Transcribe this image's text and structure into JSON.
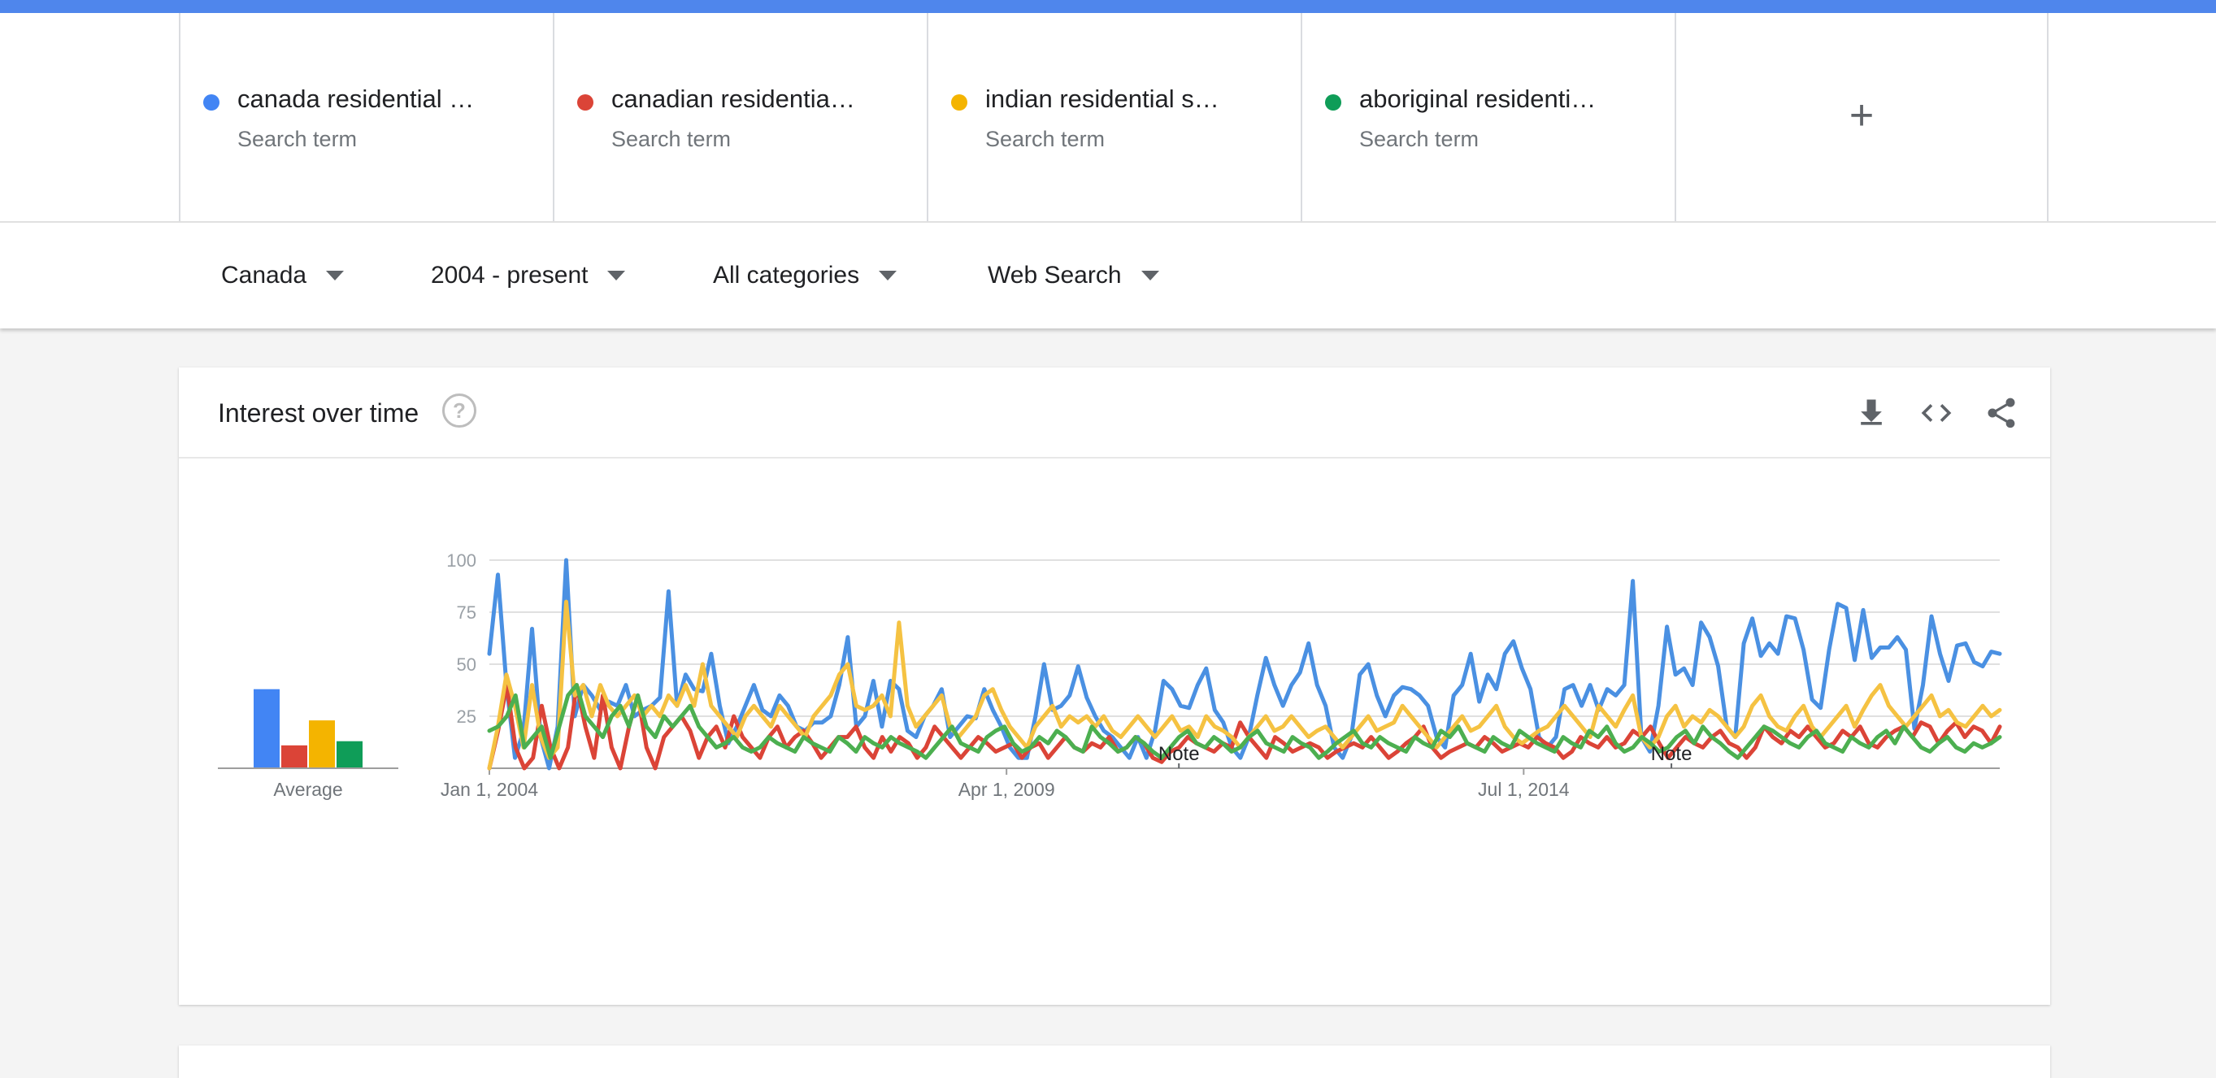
{
  "search_terms": [
    {
      "label": "canada residential …",
      "sub": "Search term",
      "color": "#4285f4"
    },
    {
      "label": "canadian residentia…",
      "sub": "Search term",
      "color": "#db4437"
    },
    {
      "label": "indian residential s…",
      "sub": "Search term",
      "color": "#f4b400"
    },
    {
      "label": "aboriginal residenti…",
      "sub": "Search term",
      "color": "#0f9d58"
    }
  ],
  "add_term_icon": "plus-icon",
  "filters": {
    "region": "Canada",
    "time": "2004 - present",
    "category": "All categories",
    "search_type": "Web Search"
  },
  "card": {
    "title": "Interest over time",
    "help_symbol": "?",
    "icons": [
      "download-icon",
      "embed-code-icon",
      "share-icon"
    ]
  },
  "chart_data": {
    "type": "line",
    "title": "Interest over time",
    "x_range": [
      "2004-01",
      "2019-05"
    ],
    "x_tick_labels": [
      "Jan 1, 2004",
      "Apr 1, 2009",
      "Jul 1, 2014"
    ],
    "ylim": [
      0,
      100
    ],
    "y_ticks": [
      25,
      50,
      75,
      100
    ],
    "grid": true,
    "notes": [
      {
        "date": "2011-01",
        "label": "Note"
      },
      {
        "date": "2016-01",
        "label": "Note"
      }
    ],
    "average_label": "Average",
    "averages": [
      38,
      11,
      23,
      13
    ],
    "series": [
      {
        "name": "canada residential …",
        "color": "#4a90e2",
        "values": [
          55,
          93,
          40,
          5,
          18,
          67,
          15,
          0,
          20,
          100,
          25,
          40,
          35,
          28,
          32,
          30,
          40,
          25,
          28,
          30,
          34,
          85,
          30,
          45,
          38,
          37,
          55,
          30,
          12,
          20,
          30,
          40,
          28,
          25,
          35,
          30,
          20,
          18,
          22,
          22,
          25,
          40,
          63,
          20,
          25,
          42,
          20,
          42,
          38,
          18,
          15,
          25,
          30,
          38,
          15,
          20,
          25,
          24,
          38,
          28,
          20,
          10,
          5,
          5,
          25,
          50,
          28,
          30,
          35,
          49,
          34,
          25,
          18,
          15,
          10,
          5,
          15,
          5,
          18,
          42,
          38,
          30,
          29,
          40,
          48,
          28,
          22,
          10,
          5,
          15,
          35,
          53,
          40,
          30,
          40,
          46,
          60,
          40,
          30,
          10,
          5,
          15,
          45,
          50,
          35,
          25,
          35,
          39,
          38,
          35,
          30,
          15,
          10,
          35,
          40,
          55,
          32,
          45,
          38,
          55,
          61,
          48,
          38,
          15,
          10,
          15,
          38,
          40,
          30,
          40,
          28,
          38,
          35,
          40,
          90,
          15,
          8,
          30,
          68,
          45,
          48,
          40,
          70,
          63,
          49,
          20,
          15,
          60,
          72,
          54,
          60,
          55,
          73,
          72,
          57,
          33,
          29,
          57,
          79,
          77,
          52,
          76,
          53,
          58,
          58,
          63,
          57,
          19,
          40,
          73,
          55,
          42,
          59,
          60,
          51,
          49,
          56,
          55
        ]
      },
      {
        "name": "canadian residentia…",
        "color": "#db4437",
        "values": [
          0,
          18,
          40,
          10,
          0,
          5,
          30,
          10,
          0,
          10,
          40,
          20,
          5,
          35,
          10,
          0,
          20,
          35,
          10,
          0,
          15,
          20,
          25,
          18,
          5,
          15,
          20,
          10,
          25,
          15,
          10,
          5,
          15,
          20,
          10,
          15,
          18,
          12,
          5,
          10,
          15,
          15,
          20,
          10,
          5,
          15,
          8,
          15,
          12,
          5,
          10,
          20,
          15,
          10,
          5,
          10,
          15,
          12,
          8,
          10,
          12,
          5,
          10,
          12,
          5,
          10,
          15,
          10,
          8,
          12,
          10,
          15,
          8,
          10,
          15,
          12,
          5,
          3,
          8,
          10,
          15,
          12,
          10,
          8,
          12,
          10,
          22,
          15,
          10,
          5,
          15,
          12,
          8,
          10,
          12,
          10,
          5,
          8,
          10,
          12,
          10,
          15,
          10,
          5,
          8,
          12,
          15,
          20,
          10,
          5,
          8,
          10,
          12,
          10,
          15,
          12,
          8,
          10,
          12,
          10,
          15,
          12,
          10,
          5,
          8,
          15,
          12,
          10,
          15,
          10,
          12,
          18,
          15,
          20,
          12,
          5,
          10,
          15,
          12,
          10,
          15,
          18,
          12,
          10,
          5,
          10,
          20,
          15,
          12,
          18,
          15,
          20,
          15,
          10,
          12,
          18,
          15,
          20,
          12,
          10,
          15,
          18,
          20,
          15,
          22,
          20,
          12,
          18,
          22,
          15,
          20,
          18,
          12,
          20
        ]
      },
      {
        "name": "indian residential s…",
        "color": "#f5c242",
        "values": [
          0,
          20,
          45,
          30,
          10,
          40,
          15,
          5,
          10,
          80,
          35,
          40,
          25,
          40,
          30,
          25,
          30,
          35,
          25,
          30,
          25,
          35,
          30,
          40,
          30,
          50,
          30,
          25,
          20,
          15,
          25,
          30,
          25,
          20,
          30,
          25,
          20,
          15,
          25,
          30,
          35,
          45,
          50,
          30,
          28,
          30,
          35,
          25,
          70,
          30,
          20,
          25,
          30,
          35,
          20,
          15,
          20,
          25,
          35,
          38,
          28,
          20,
          15,
          10,
          20,
          25,
          30,
          20,
          25,
          22,
          25,
          20,
          25,
          18,
          15,
          20,
          25,
          20,
          15,
          20,
          25,
          18,
          20,
          15,
          25,
          20,
          18,
          15,
          10,
          15,
          20,
          25,
          18,
          20,
          25,
          20,
          15,
          18,
          20,
          15,
          10,
          15,
          20,
          25,
          18,
          20,
          22,
          30,
          25,
          20,
          15,
          10,
          15,
          20,
          25,
          18,
          20,
          25,
          30,
          20,
          15,
          12,
          15,
          18,
          20,
          25,
          30,
          25,
          20,
          15,
          30,
          25,
          20,
          28,
          35,
          15,
          10,
          15,
          25,
          30,
          20,
          25,
          22,
          28,
          25,
          20,
          15,
          20,
          30,
          35,
          25,
          20,
          18,
          25,
          30,
          20,
          15,
          20,
          25,
          30,
          20,
          28,
          35,
          40,
          30,
          25,
          20,
          25,
          30,
          35,
          25,
          28,
          22,
          20,
          25,
          30,
          25,
          28
        ]
      },
      {
        "name": "aboriginal residenti…",
        "color": "#4caf50",
        "values": [
          18,
          20,
          25,
          35,
          10,
          15,
          20,
          5,
          20,
          35,
          40,
          25,
          20,
          15,
          25,
          30,
          20,
          35,
          20,
          15,
          25,
          20,
          25,
          30,
          20,
          15,
          10,
          12,
          15,
          10,
          8,
          10,
          15,
          12,
          10,
          8,
          15,
          12,
          10,
          8,
          15,
          12,
          8,
          15,
          12,
          10,
          15,
          12,
          10,
          8,
          5,
          10,
          15,
          20,
          12,
          10,
          8,
          15,
          18,
          20,
          12,
          8,
          10,
          15,
          12,
          18,
          15,
          10,
          8,
          20,
          15,
          12,
          8,
          10,
          15,
          12,
          8,
          5,
          10,
          15,
          18,
          12,
          10,
          15,
          12,
          8,
          10,
          15,
          18,
          12,
          10,
          8,
          15,
          12,
          10,
          5,
          8,
          12,
          15,
          18,
          12,
          10,
          15,
          12,
          10,
          8,
          15,
          12,
          10,
          18,
          15,
          20,
          12,
          10,
          8,
          15,
          12,
          10,
          18,
          15,
          12,
          10,
          8,
          15,
          12,
          10,
          18,
          15,
          20,
          12,
          8,
          10,
          15,
          12,
          8,
          10,
          15,
          18,
          12,
          20,
          15,
          12,
          8,
          5,
          10,
          15,
          20,
          18,
          15,
          12,
          10,
          15,
          18,
          12,
          10,
          8,
          15,
          12,
          10,
          15,
          18,
          12,
          20,
          15,
          10,
          8,
          12,
          15,
          10,
          8,
          12,
          10,
          12,
          15
        ]
      }
    ]
  }
}
